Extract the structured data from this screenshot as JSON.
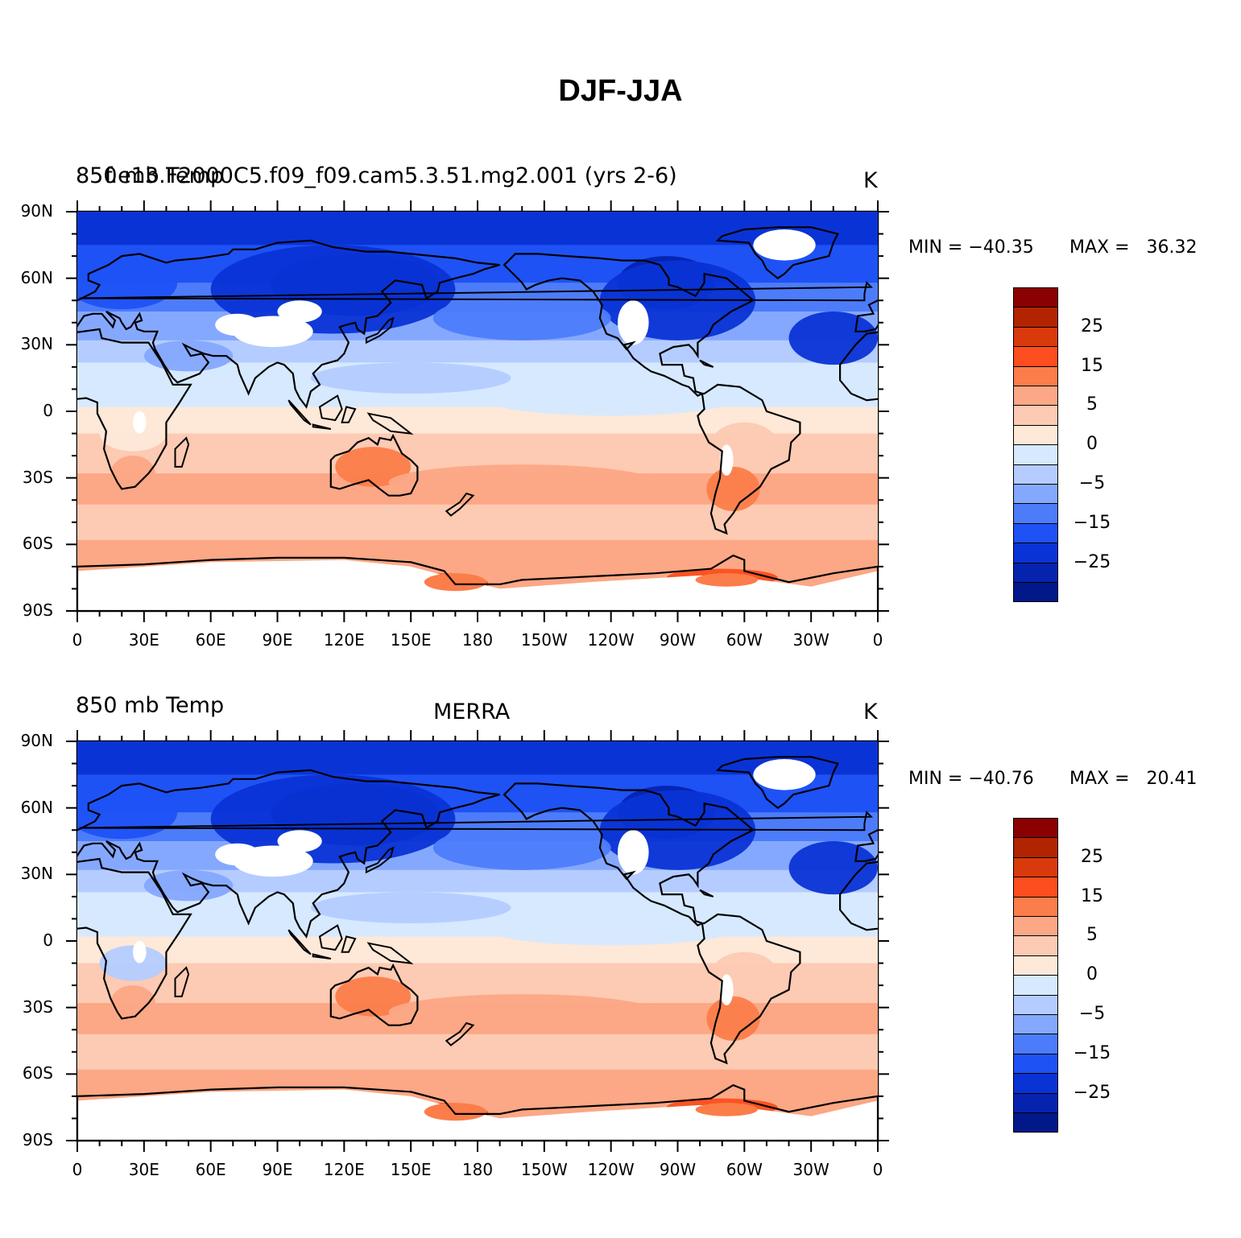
{
  "title": "DJF-JJA",
  "panels": [
    {
      "left_label": "850 mb Temp",
      "center_label": "",
      "overlay_label": "f.e13.F2000C5.f09_f09.cam5.3.51.mg2.001 (yrs 2-6)",
      "units": "K",
      "min_text": "MIN = −40.35",
      "max_text": "MAX =   36.32",
      "dataset": "model"
    },
    {
      "left_label": "850 mb Temp",
      "center_label": "MERRA",
      "overlay_label": "",
      "units": "K",
      "min_text": "MIN = −40.76",
      "max_text": "MAX =   20.41",
      "dataset": "obs"
    }
  ],
  "axes": {
    "lat_labels": [
      "90N",
      "60N",
      "30N",
      "0",
      "30S",
      "60S",
      "90S"
    ],
    "lon_labels": [
      "0",
      "30E",
      "60E",
      "90E",
      "120E",
      "150E",
      "180",
      "150W",
      "120W",
      "90W",
      "60W",
      "30W",
      "0"
    ]
  },
  "colorbar": {
    "levels": [
      -30,
      -25,
      -20,
      -15,
      -10,
      -5,
      -2,
      0,
      2,
      5,
      10,
      15,
      20,
      25,
      30
    ],
    "tick_labels": [
      "25",
      "15",
      "5",
      "0",
      "−5",
      "−15",
      "−25"
    ],
    "colors_top_to_bottom": [
      "#8b0000",
      "#b22400",
      "#d93a0c",
      "#fc4e1e",
      "#fb7d4a",
      "#fca785",
      "#fdcab3",
      "#fee8d8",
      "#d6e9ff",
      "#b4ccff",
      "#85a8ff",
      "#4d7cfb",
      "#1e52f5",
      "#0a33d6",
      "#0623b0",
      "#00188a"
    ]
  },
  "map_colors": {
    "missing": "#ffffff",
    "coastline": "#000000"
  }
}
